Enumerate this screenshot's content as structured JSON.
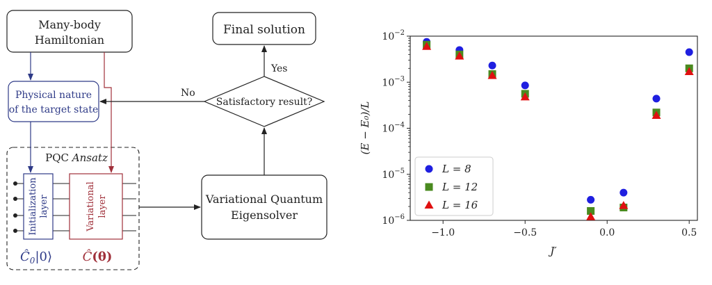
{
  "flowchart": {
    "hamiltonian_line1": "Many-body",
    "hamiltonian_line2": "Hamiltonian",
    "final_solution": "Final solution",
    "physical_line1": "Physical nature",
    "physical_line2": "of the target state",
    "decision": "Satisfactory result?",
    "yes_label": "Yes",
    "no_label": "No",
    "pqc_title_prefix": "PQC ",
    "pqc_title_italic": "Ansatz",
    "init_line1": "Initialization",
    "init_line2": "layer",
    "var_line1": "Variational",
    "var_line2": "layer",
    "c0_symbol": "Ĉ",
    "c0_subscript": "0",
    "c0_ket": "|0⟩",
    "ctheta_symbol": "Ĉ",
    "ctheta_arg": "(θ)",
    "vqe_line1": "Variational Quantum",
    "vqe_line2": "Eigensolver",
    "colors": {
      "blue": "#2e3a87",
      "red": "#a0303a",
      "black": "#222222"
    }
  },
  "chart_data": {
    "type": "scatter",
    "xlabel": "J′",
    "ylabel": "(E − E₀)/L",
    "xlim": [
      -1.2,
      0.55
    ],
    "ylim": [
      1e-06,
      0.01
    ],
    "yscale": "log",
    "xticks": [
      -1.0,
      -0.5,
      0.0,
      0.5
    ],
    "xtick_labels": [
      "−1.0",
      "−0.5",
      "0.0",
      "0.5"
    ],
    "yticks": [
      1e-06,
      1e-05,
      0.0001,
      0.001,
      0.01
    ],
    "ytick_exponents": [
      "−6",
      "−5",
      "−4",
      "−3",
      "−2"
    ],
    "legend_position": "bottom-left",
    "x": [
      -1.1,
      -0.9,
      -0.7,
      -0.5,
      -0.1,
      0.1,
      0.3,
      0.5
    ],
    "series": [
      {
        "name": "L = 8",
        "marker": "circle",
        "color": "#1f1fe0",
        "values": [
          0.0075,
          0.005,
          0.0023,
          0.00085,
          2.8e-06,
          4e-06,
          0.00044,
          0.0045
        ]
      },
      {
        "name": "L = 12",
        "marker": "square",
        "color": "#4a8a1f",
        "values": [
          0.0065,
          0.004,
          0.0015,
          0.00056,
          1.6e-06,
          1.9e-06,
          0.00022,
          0.002
        ]
      },
      {
        "name": "L = 16",
        "marker": "triangle",
        "color": "#e01010",
        "values": [
          0.006,
          0.0037,
          0.0014,
          0.00048,
          1.2e-06,
          2.1e-06,
          0.00019,
          0.0017
        ]
      }
    ]
  }
}
